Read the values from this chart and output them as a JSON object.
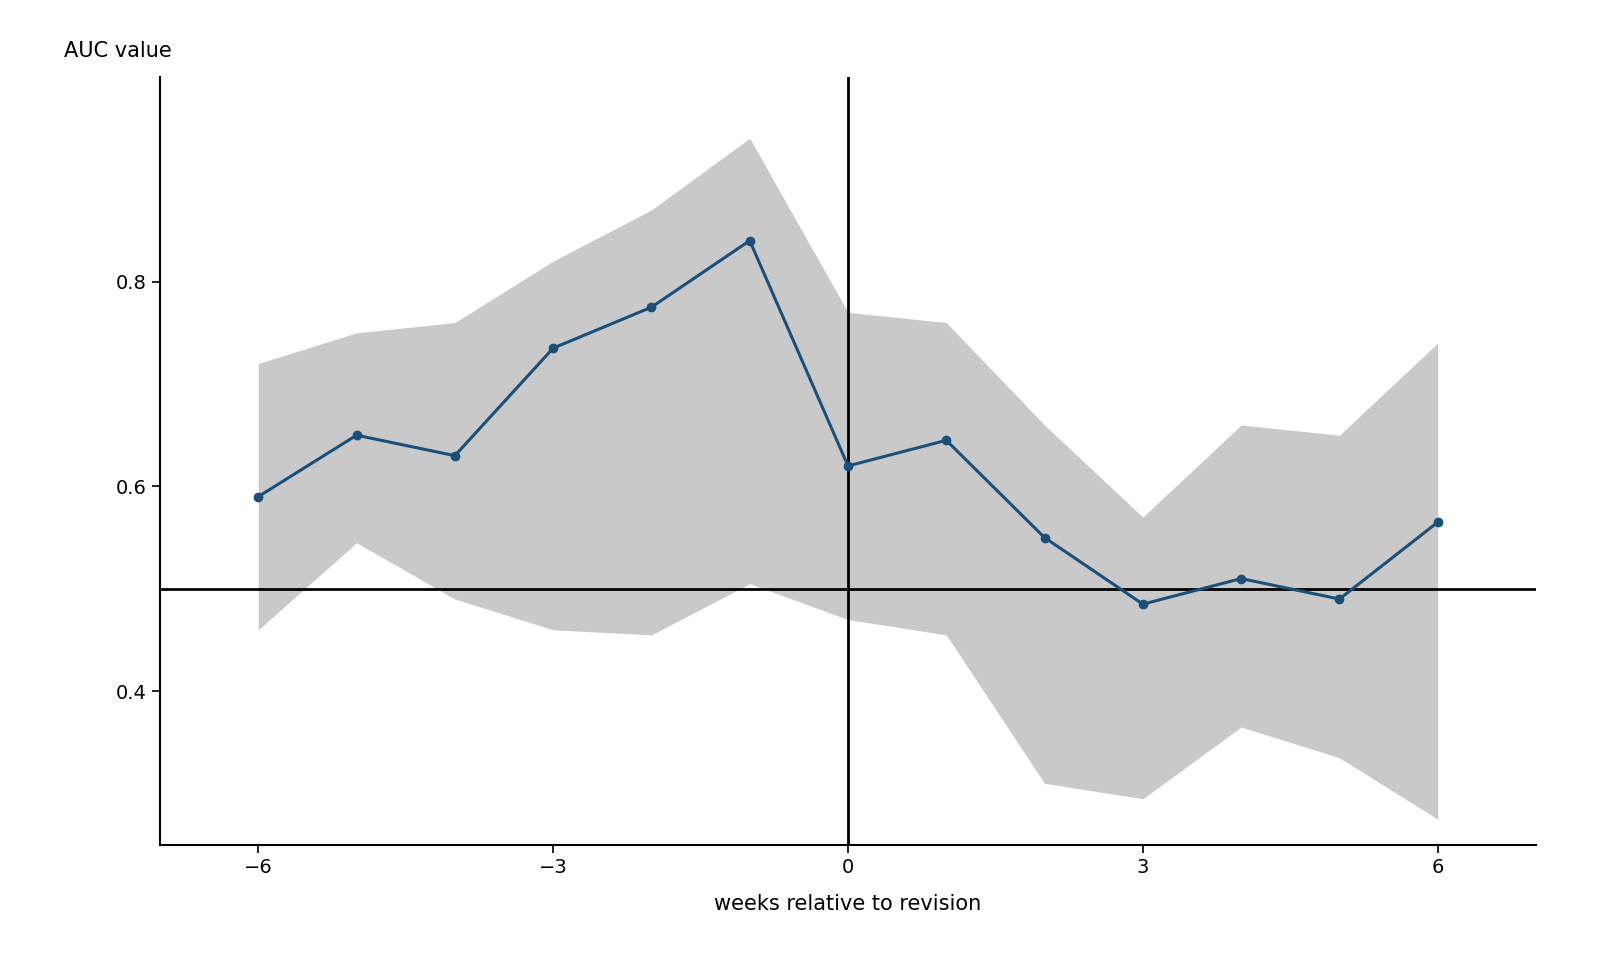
{
  "x": [
    -6,
    -5,
    -4,
    -3,
    -2,
    -1,
    0,
    1,
    2,
    3,
    4,
    5,
    6
  ],
  "y": [
    0.59,
    0.65,
    0.63,
    0.735,
    0.775,
    0.84,
    0.62,
    0.645,
    0.55,
    0.485,
    0.51,
    0.49,
    0.565
  ],
  "ci_upper": [
    0.72,
    0.75,
    0.76,
    0.82,
    0.87,
    0.94,
    0.77,
    0.76,
    0.66,
    0.57,
    0.66,
    0.65,
    0.74
  ],
  "ci_lower": [
    0.46,
    0.545,
    0.49,
    0.46,
    0.455,
    0.505,
    0.47,
    0.455,
    0.31,
    0.295,
    0.365,
    0.335,
    0.275
  ],
  "line_color": "#1a4f7a",
  "fill_color": "#c0c0c0",
  "fill_alpha": 0.85,
  "marker": "o",
  "markersize": 6,
  "linewidth": 2.2,
  "xlabel": "weeks relative to revision",
  "ylabel": "AUC value",
  "xlim": [
    -7,
    7
  ],
  "ylim": [
    0.25,
    1.0
  ],
  "xticks": [
    -6,
    -3,
    0,
    3,
    6
  ],
  "yticks": [
    0.4,
    0.6,
    0.8
  ],
  "hline_y": 0.5,
  "vline_x": 0,
  "background_color": "#ffffff",
  "label_fontsize": 15,
  "tick_fontsize": 14,
  "ylabel_fontsize": 15
}
